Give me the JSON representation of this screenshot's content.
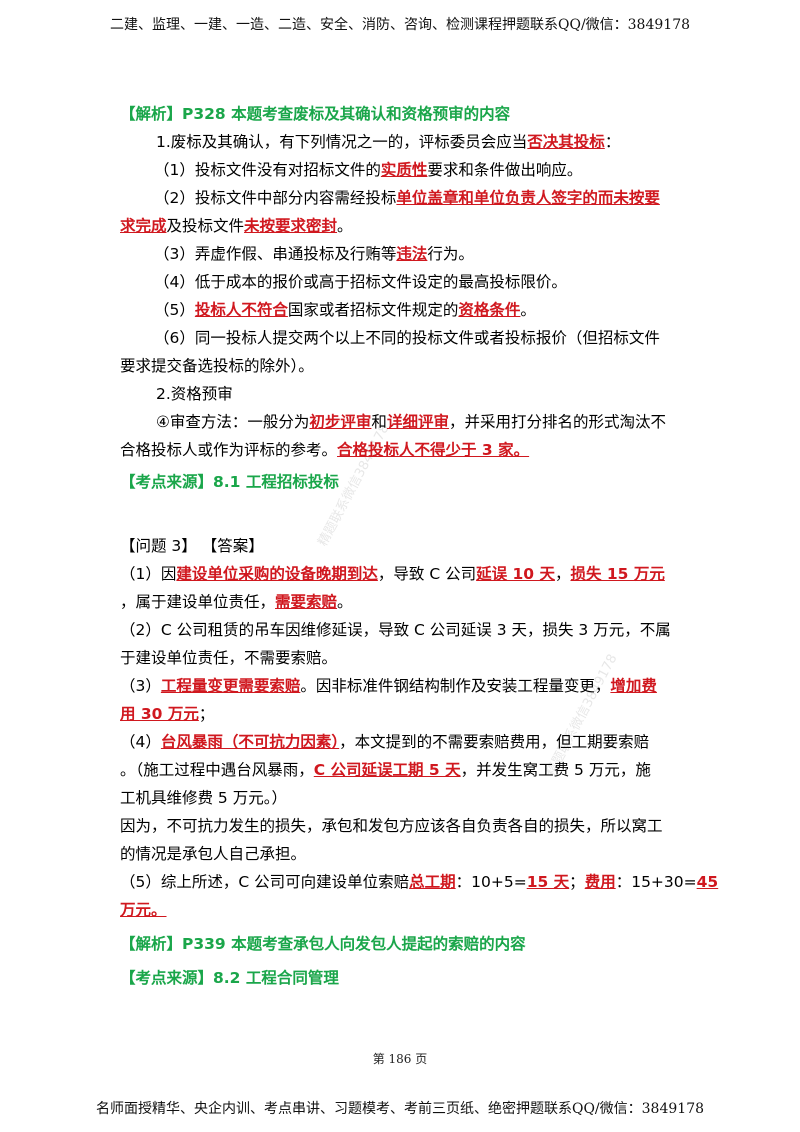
{
  "header": "二建、监理、一建、一造、二造、安全、消防、咨询、检测课程押题联系QQ/微信：3849178",
  "footer": "名师面授精华、央企内训、考点串讲、习题模考、考前三页纸、绝密押题联系QQ/微信：3849178",
  "page_number": "第 186 页",
  "watermark": "精题联系微信3849178",
  "section1": {
    "analysis": "【解析】P328 本题考查废标及其确认和资格预审的内容",
    "p1_a": "1.废标及其确认，有下列情况之一的，评标委员会应当",
    "p1_b": "否决其投标",
    "p1_c": "：",
    "i1_a": "（1）投标文件没有对招标文件的",
    "i1_b": "实质性",
    "i1_c": "要求和条件做出响应。",
    "i2_a": "（2）投标文件中部分内容需经投标",
    "i2_b": "单位盖章和单位负责人签字的而未按要",
    "i2_c": "求完成",
    "i2_d": "及投标文件",
    "i2_e": "未按要求密封",
    "i2_f": "。",
    "i3_a": "（3）弄虚作假、串通投标及行贿等",
    "i3_b": "违法",
    "i3_c": "行为。",
    "i4": "（4）低于成本的报价或高于招标文件设定的最高投标限价。",
    "i5_a": "（5）",
    "i5_b": "投标人不符合",
    "i5_c": "国家或者招标文件规定的",
    "i5_d": "资格条件",
    "i5_e": "。",
    "i6_a": "（6）同一投标人提交两个以上不同的投标文件或者投标报价（但招标文件",
    "i6_b": "要求提交备选投标的除外）。",
    "p2": "2.资格预审",
    "p3_a": "④审查方法：一般分为",
    "p3_b": "初步评审",
    "p3_c": "和",
    "p3_d": "详细评审",
    "p3_e": "，并采用打分排名的形式淘汰不",
    "p3_f": "合格投标人或作为评标的参考。",
    "p3_g": "合格投标人不得少于 3 家。",
    "source": "【考点来源】8.1 工程招标投标"
  },
  "section2": {
    "question": "【问题 3】  【答案】",
    "a1_a": "（1）因",
    "a1_b": "建设单位采购的设备晚期到达",
    "a1_c": "，导致 C 公司",
    "a1_d": "延误 10 天",
    "a1_e": "，",
    "a1_f": "损失 15 万元",
    "a1_g": "，属于建设单位责任，",
    "a1_h": "需要索赔",
    "a1_i": "。",
    "a2_a": "（2）C 公司租赁的吊车因维修延误，导致 C 公司延误 3 天，损失 3 万元，不属",
    "a2_b": "于建设单位责任，不需要索赔。",
    "a3_a": "（3）",
    "a3_b": "工程量变更需要索赔",
    "a3_c": "。因非标准件钢结构制作及安装工程量变更，",
    "a3_d": "增加费",
    "a3_e": "用 30 万元",
    "a3_f": "；",
    "a4_a": "（4）",
    "a4_b": "台风暴雨（不可抗力因素）",
    "a4_c": "，本文提到的不需要索赔费用，但工期要索赔",
    "a4_d": "。（施工过程中遇台风暴雨，",
    "a4_e": "C 公司延误工期 5 天",
    "a4_f": "，并发生窝工费 5 万元，施",
    "a4_g": "工机具维修费 5 万元。）",
    "a5_a": "因为，不可抗力发生的损失，承包和发包方应该各自负责各自的损失，所以窝工",
    "a5_b": "的情况是承包人自己承担。",
    "a6_a": "（5）综上所述，C 公司可向建设单位索赔",
    "a6_b": "总工期",
    "a6_c": "：10+5=",
    "a6_d": "15 天",
    "a6_e": "；",
    "a6_f": "费用",
    "a6_g": "：15+30=",
    "a6_h": "45",
    "a6_i": "万元。",
    "analysis": "【解析】P339 本题考查承包人向发包人提起的索赔的内容",
    "source": "【考点来源】8.2 工程合同管理"
  }
}
